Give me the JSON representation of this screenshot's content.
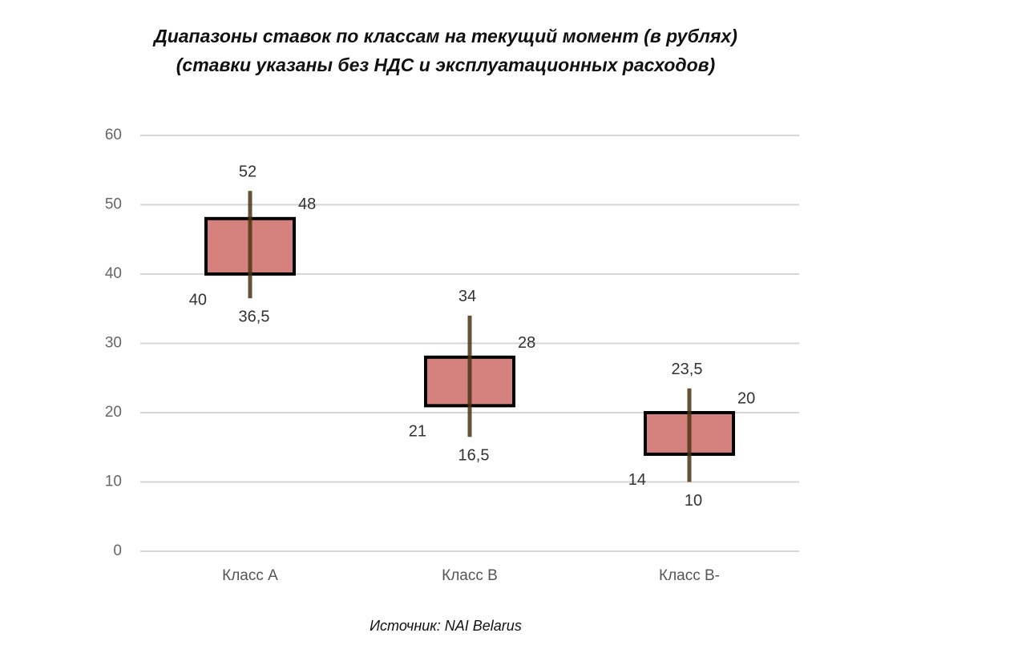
{
  "chart_data": {
    "type": "candlestick",
    "title": "Диапазоны ставок по классам на текущий момент (в рублях)",
    "subtitle": "(ставки указаны без НДС и эксплуатационных расходов)",
    "source": "Источник: NAI Belarus",
    "categories": [
      "Класс А",
      "Класс В",
      "Класс В-"
    ],
    "low": {
      "values": [
        36.5,
        16.5,
        10
      ],
      "value_labels": [
        "36,5",
        "16,5",
        "10"
      ]
    },
    "high": {
      "values": [
        52,
        34,
        23.5
      ],
      "value_labels": [
        "52",
        "34",
        "23,5"
      ]
    },
    "box_low": {
      "values": [
        40,
        21,
        14
      ]
    },
    "box_high": {
      "values": [
        48,
        28,
        20
      ]
    },
    "box_color": "#d4807c",
    "whisker_color": "#4a3514",
    "ylim": [
      0,
      60
    ],
    "yticks": [
      0,
      10,
      20,
      30,
      40,
      50,
      60
    ],
    "grid": true
  }
}
